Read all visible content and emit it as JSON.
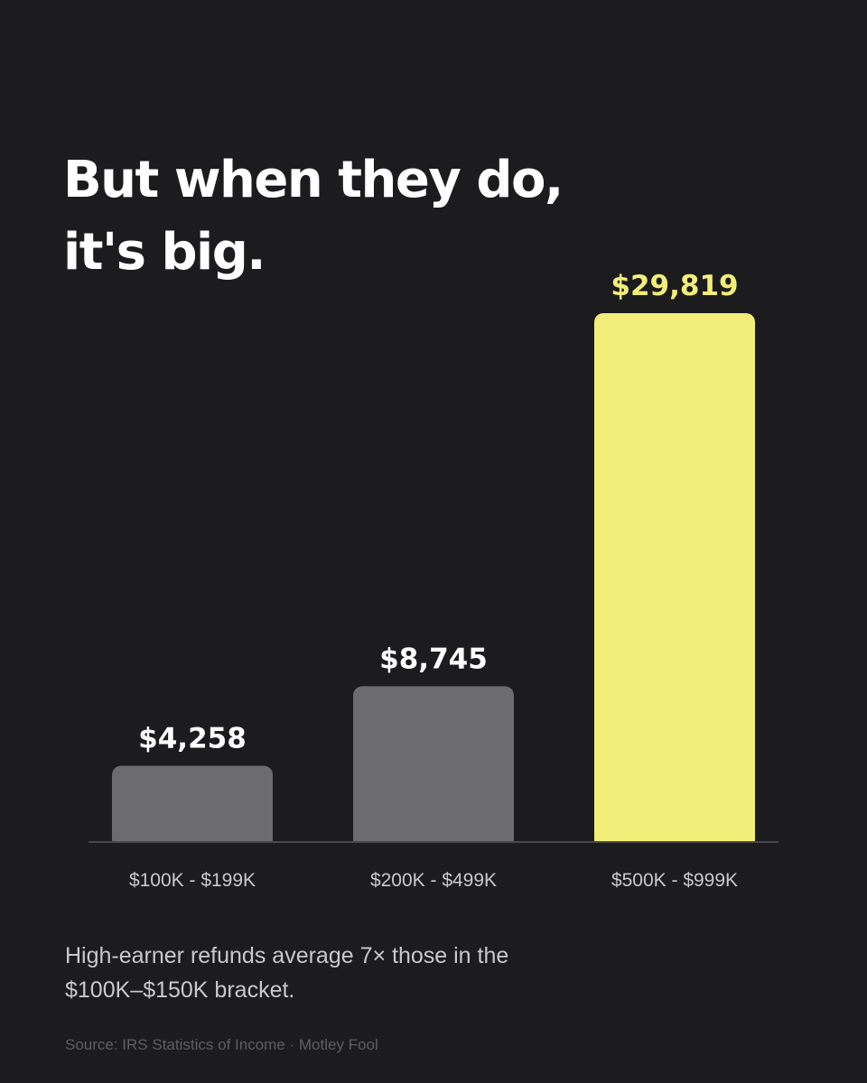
{
  "headline": {
    "line1": "But when they do,",
    "line2": "it's big."
  },
  "subtitle": {
    "line1": "High-earner refunds average 7× those in the",
    "line2": "$100K–$150K bracket."
  },
  "source": "Source: IRS Statistics of Income · Motley Fool",
  "colors": {
    "background": "#1c1c1e",
    "bar_default": "#6b6b70",
    "bar_highlight": "#f3ee79",
    "value_label_default": "#ffffff",
    "value_label_highlight": "#f3ee79",
    "axis_line": "#48484c",
    "category_label": "#c9c9cd"
  },
  "chart_data": {
    "type": "bar",
    "categories": [
      "$100K - $199K",
      "$200K - $499K",
      "$500K - $999K"
    ],
    "values": [
      4258,
      8745,
      29819
    ],
    "value_labels": [
      "$4,258",
      "$8,745",
      "$29,819"
    ],
    "highlight_index": 2,
    "ylim": [
      0,
      29819
    ],
    "grid": false,
    "legend": "none"
  }
}
